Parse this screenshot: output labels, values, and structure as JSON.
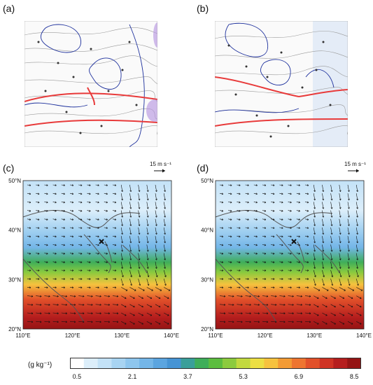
{
  "panels": {
    "a": {
      "label": "(a)"
    },
    "b": {
      "label": "(b)"
    },
    "c": {
      "label": "(c)"
    },
    "d": {
      "label": "(d)"
    }
  },
  "reference_vector": {
    "label": "15 m s⁻¹"
  },
  "axes": {
    "lat_ticks": [
      "20°N",
      "30°N",
      "40°N",
      "50°N"
    ],
    "lon_ticks": [
      "110°E",
      "120°E",
      "130°E",
      "140°E"
    ]
  },
  "colorbar": {
    "title": "(g kg⁻¹)",
    "tick_labels": [
      "0.5",
      "2.1",
      "3.7",
      "5.3",
      "6.9",
      "8.5"
    ],
    "colors": [
      "#ffffff",
      "#dceefa",
      "#c3e2f7",
      "#a8d4f2",
      "#8ec6ee",
      "#74b6e8",
      "#5ba5e0",
      "#4694d4",
      "#3a9f9a",
      "#3fae5a",
      "#5cbd3f",
      "#8ccb3e",
      "#c2d93f",
      "#ecdf43",
      "#f6c23e",
      "#f39b34",
      "#ee7530",
      "#e2512a",
      "#cf3324",
      "#b51e1e",
      "#951414"
    ]
  },
  "colors": {
    "front": "#e83a3a",
    "isobar_blue": "#1c2f9c",
    "isobar_gray": "#8a8a8a",
    "coast": "#555555"
  }
}
